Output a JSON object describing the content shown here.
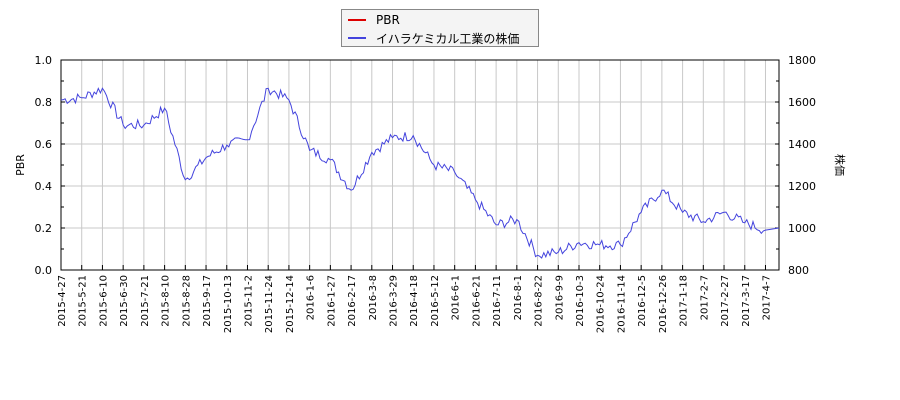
{
  "legend": {
    "items": [
      {
        "label": "PBR",
        "color": "#dd0000"
      },
      {
        "label": "イハラケミカル工業の株価",
        "color": "#4444dd"
      }
    ]
  },
  "axes": {
    "left_label": "PBR",
    "right_label": "株価"
  },
  "chart_data": {
    "type": "line",
    "title": "",
    "xlabel": "",
    "ylabel": "PBR",
    "y2label": "株価",
    "ylim": [
      0.0,
      1.0
    ],
    "y2lim": [
      800,
      1800
    ],
    "grid": true,
    "legend_position": "top-center",
    "yticks": [
      "0.0",
      "0.2",
      "0.4",
      "0.6",
      "0.8",
      "1.0"
    ],
    "y2ticks": [
      "800",
      "1000",
      "1200",
      "1400",
      "1600",
      "1800"
    ],
    "categories": [
      "2015-4-27",
      "2015-5-21",
      "2015-6-10",
      "2015-6-30",
      "2015-7-21",
      "2015-8-10",
      "2015-8-28",
      "2015-9-17",
      "2015-10-13",
      "2015-11-2",
      "2015-11-24",
      "2015-12-14",
      "2016-1-6",
      "2016-1-27",
      "2016-2-17",
      "2016-3-8",
      "2016-3-29",
      "2016-4-18",
      "2016-5-12",
      "2016-6-1",
      "2016-6-21",
      "2016-7-11",
      "2016-8-1",
      "2016-8-22",
      "2016-9-9",
      "2016-10-3",
      "2016-10-24",
      "2016-11-14",
      "2016-12-5",
      "2016-12-26",
      "2017-1-18",
      "2017-2-7",
      "2017-2-27",
      "2017-3-17",
      "2017-4-7"
    ],
    "series": [
      {
        "name": "PBR",
        "axis": "left",
        "color": "#dd0000",
        "values": []
      },
      {
        "name": "イハラケミカル工業の株価",
        "axis": "right",
        "color": "#4444dd",
        "values": [
          1610,
          1620,
          1665,
          1490,
          1490,
          1570,
          1230,
          1335,
          1395,
          1420,
          1665,
          1610,
          1370,
          1325,
          1180,
          1360,
          1430,
          1440,
          1300,
          1265,
          1135,
          1015,
          1040,
          870,
          885,
          930,
          920,
          920,
          1075,
          1180,
          1075,
          1030,
          1075,
          1025,
          990
        ]
      }
    ]
  }
}
